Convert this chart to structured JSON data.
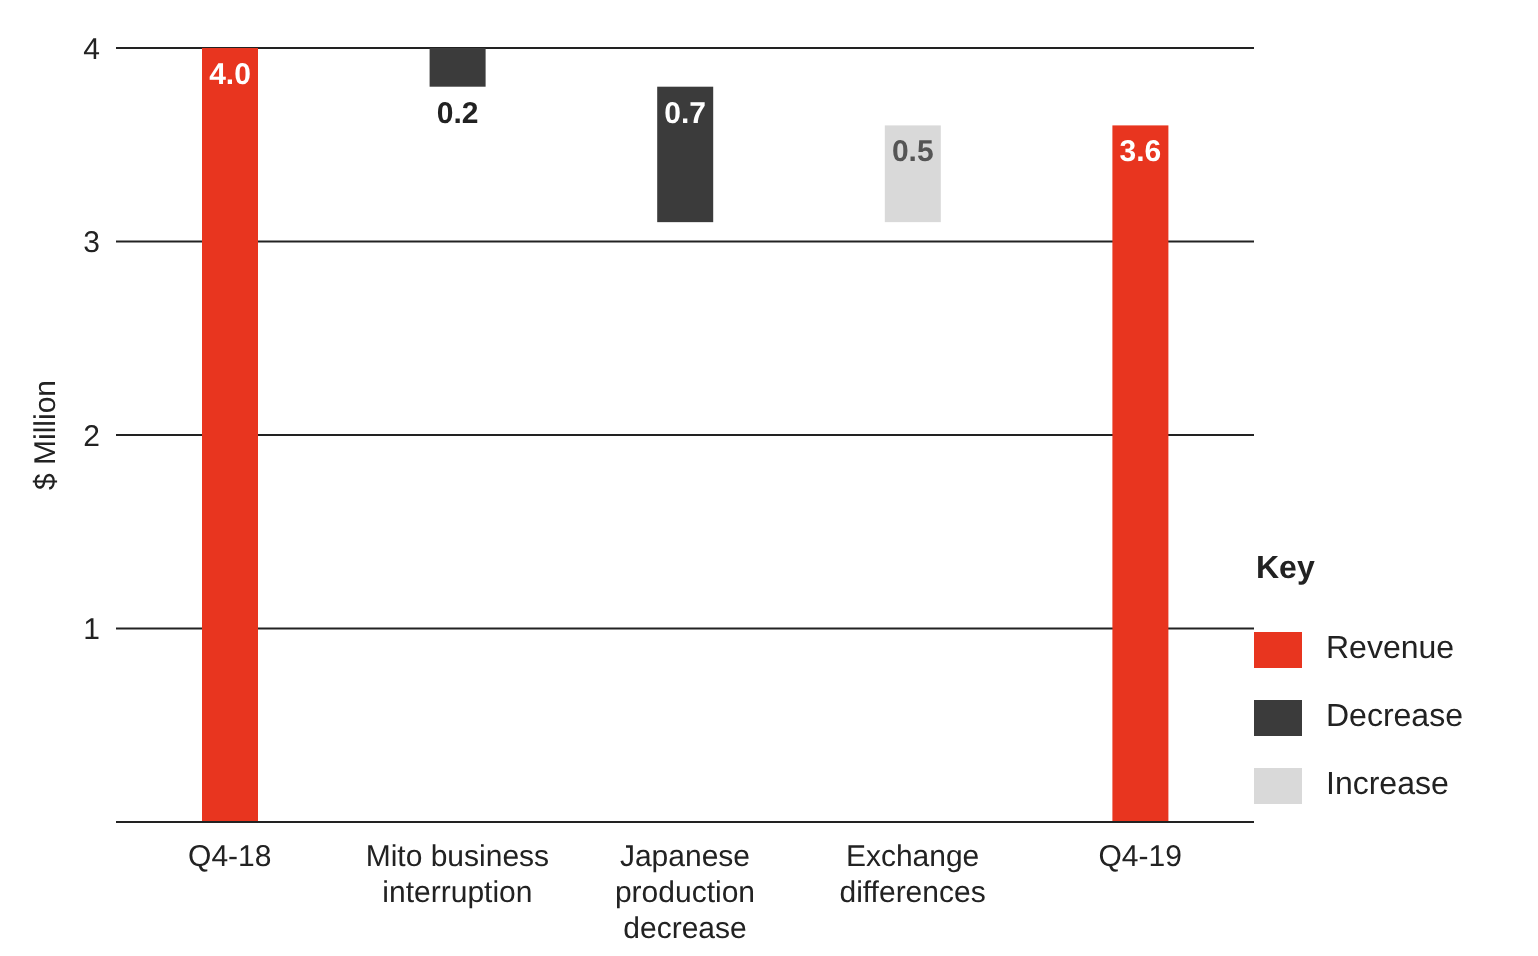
{
  "chart_data": {
    "type": "bar",
    "ylabel": "$ Million",
    "legend_title": "Key",
    "categories": [
      "Q4-18",
      "Mito business interruption",
      "Japanese production decrease",
      "Exchange differences",
      "Q4-19"
    ],
    "series": [
      {
        "name": "Revenue",
        "color": "#e8351f",
        "values": [
          4.0,
          null,
          null,
          null,
          3.6
        ],
        "base": [
          0,
          null,
          null,
          null,
          0
        ],
        "value_labels": [
          "4.0",
          null,
          null,
          null,
          "3.6"
        ]
      },
      {
        "name": "Decrease",
        "color": "#3b3b3b",
        "values": [
          null,
          0.2,
          0.7,
          null,
          null
        ],
        "base": [
          null,
          3.8,
          3.1,
          null,
          null
        ],
        "value_labels": [
          null,
          "0.2",
          "0.7",
          null,
          null
        ]
      },
      {
        "name": "Increase",
        "color": "#d9d9d9",
        "values": [
          null,
          null,
          null,
          0.5,
          null
        ],
        "base": [
          null,
          null,
          null,
          3.1,
          null
        ],
        "value_labels": [
          null,
          null,
          null,
          "0.5",
          null
        ]
      }
    ],
    "ylim": [
      0,
      4
    ],
    "yticks": [
      {
        "value": 0,
        "label": null
      },
      1,
      2,
      3,
      4
    ],
    "grid": "y",
    "legend": "right"
  }
}
